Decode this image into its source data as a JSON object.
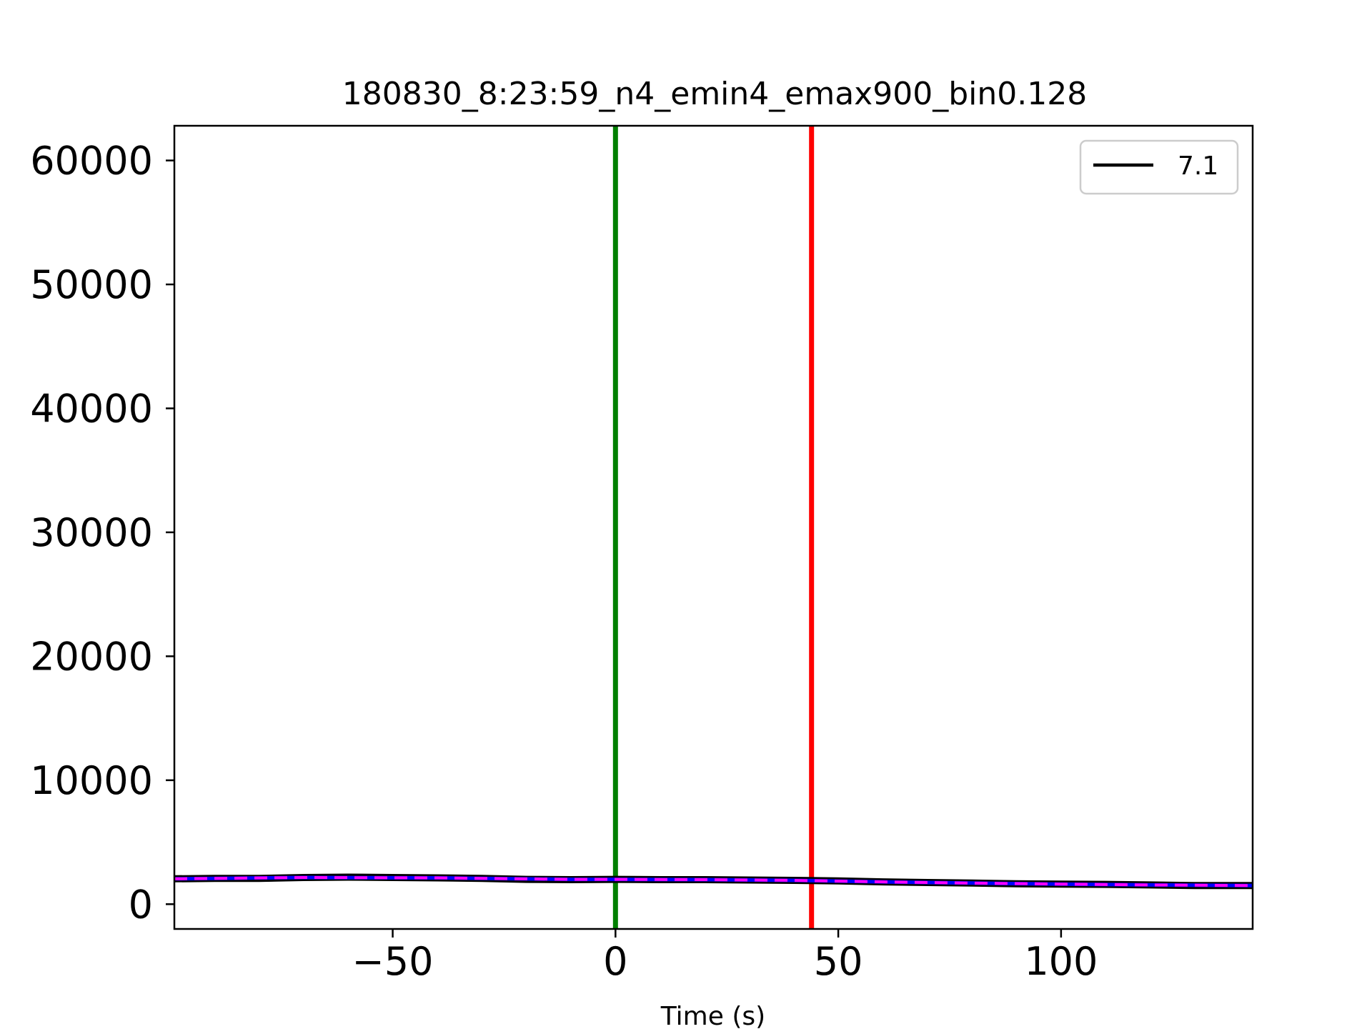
{
  "chart_data": {
    "type": "line",
    "title": "180830_8:23:59_n4_emin4_emax900_bin0.128",
    "xlabel": "Time (s)",
    "ylabel": "",
    "xlim": [
      -99,
      143
    ],
    "ylim": [
      -2000,
      62800
    ],
    "xticks": [
      -50,
      0,
      50,
      100
    ],
    "xtick_labels": [
      "−50",
      "0",
      "50",
      "100"
    ],
    "yticks": [
      0,
      10000,
      20000,
      30000,
      40000,
      50000,
      60000
    ],
    "ytick_labels": [
      "0",
      "10000",
      "20000",
      "30000",
      "40000",
      "50000",
      "60000"
    ],
    "grid": false,
    "legend": {
      "location": "top-right",
      "entries": [
        {
          "label": "7.1",
          "color": "#000000"
        }
      ]
    },
    "series": [
      {
        "name": "7.1",
        "color": "#000000",
        "style": "solid",
        "x": [
          -99,
          -90,
          -80,
          -70,
          -60,
          -50,
          -40,
          -30,
          -20,
          -10,
          0,
          10,
          20,
          30,
          40,
          50,
          60,
          70,
          80,
          90,
          100,
          110,
          120,
          130,
          143
        ],
        "y": [
          2050,
          2080,
          2080,
          2150,
          2180,
          2150,
          2120,
          2080,
          2000,
          1980,
          2000,
          1980,
          1980,
          1950,
          1920,
          1880,
          1800,
          1750,
          1700,
          1650,
          1620,
          1600,
          1550,
          1500,
          1500
        ]
      },
      {
        "name": "",
        "color": "#0000ff",
        "style": "solid",
        "x": [
          -99,
          -70,
          -40,
          -10,
          0,
          20,
          40,
          60,
          80,
          100,
          120,
          143
        ],
        "y": [
          2050,
          2150,
          2120,
          2000,
          2000,
          1980,
          1920,
          1800,
          1700,
          1620,
          1550,
          1500
        ]
      },
      {
        "name": "",
        "color": "#ff00ff",
        "style": "dashed",
        "x": [
          -99,
          -70,
          -40,
          -10,
          0,
          20,
          40,
          60,
          80,
          100,
          120,
          143
        ],
        "y": [
          2050,
          2150,
          2120,
          2000,
          2000,
          1980,
          1920,
          1800,
          1700,
          1620,
          1550,
          1500
        ]
      }
    ],
    "vlines": [
      {
        "x": 0,
        "color": "#008000"
      },
      {
        "x": 44,
        "color": "#ff0000"
      }
    ]
  }
}
